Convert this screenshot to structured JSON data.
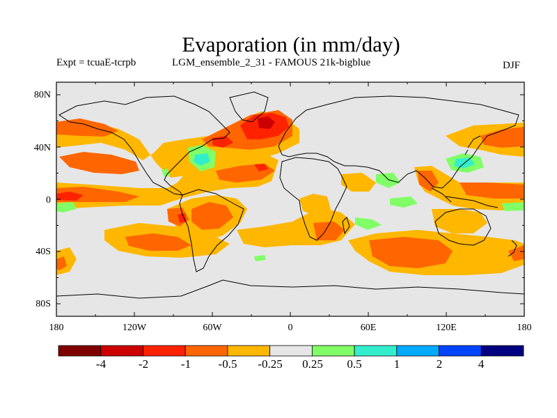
{
  "header": {
    "title": "Evaporation (in mm/day)",
    "expt": "Expt = tcuaE-tcrpb",
    "run": "LGM_ensemble_2_31 - FAMOUS 21k-bigblue",
    "season": "DJF"
  },
  "map": {
    "lon_labels": [
      "180",
      "120W",
      "60W",
      "0",
      "60E",
      "120E",
      "180"
    ],
    "lat_labels": [
      "80N",
      "40N",
      "0",
      "40S",
      "80S"
    ],
    "background_color": "#e6e6e6"
  },
  "colorbar": {
    "colors": [
      "#800000",
      "#cc0000",
      "#ff2200",
      "#ff6600",
      "#ffb700",
      "#e6e6e6",
      "#80ff66",
      "#33eecc",
      "#00aaff",
      "#0044ff",
      "#000080"
    ],
    "labels": [
      "-4",
      "-2",
      "-1",
      "-0.5",
      "-0.25",
      "0.25",
      "0.5",
      "1",
      "2",
      "4"
    ]
  }
}
